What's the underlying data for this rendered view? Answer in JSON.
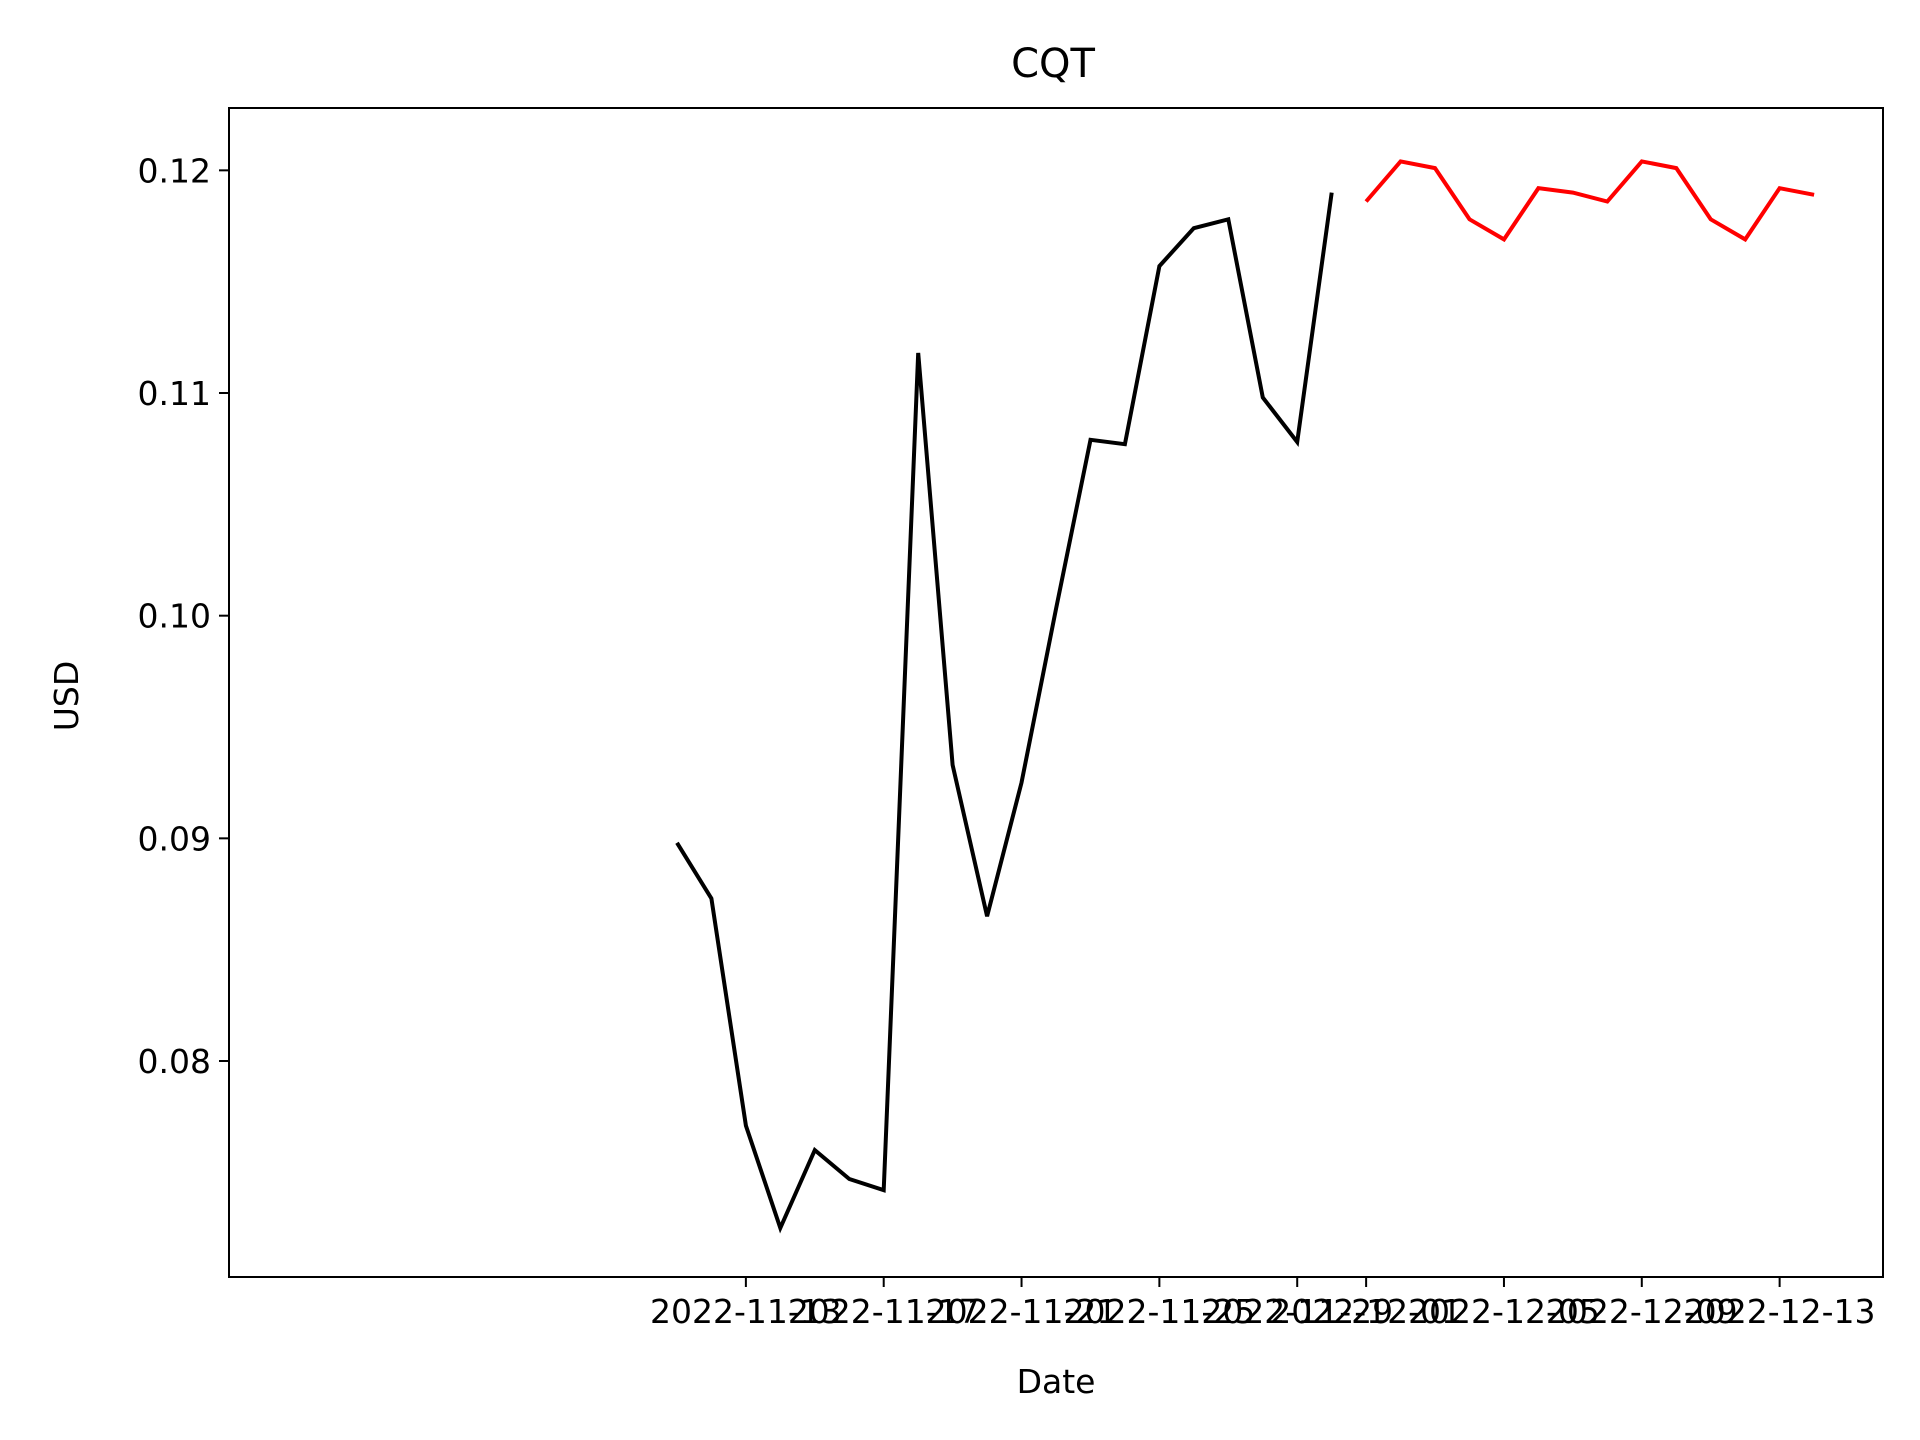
{
  "chart_data": {
    "type": "line",
    "title": "CQT",
    "xlabel": "Date",
    "ylabel": "USD",
    "grid": false,
    "legend": "none",
    "xlim": [
      "2022-10-29",
      "2022-12-16"
    ],
    "ylim": [
      0.0703,
      0.1228
    ],
    "x_ticks": [
      "2022-11-13",
      "2022-11-17",
      "2022-11-21",
      "2022-11-25",
      "2022-11-29",
      "2022-12-01",
      "2022-12-05",
      "2022-12-09",
      "2022-12-13"
    ],
    "y_ticks": [
      0.08,
      0.09,
      0.1,
      0.11,
      0.12
    ],
    "y_tick_labels": [
      "0.08",
      "0.09",
      "0.10",
      "0.11",
      "0.12"
    ],
    "series": [
      {
        "color": "#000000",
        "x": [
          "2022-11-11",
          "2022-11-12",
          "2022-11-13",
          "2022-11-14",
          "2022-11-15",
          "2022-11-16",
          "2022-11-17",
          "2022-11-18",
          "2022-11-19",
          "2022-11-20",
          "2022-11-21",
          "2022-11-22",
          "2022-11-23",
          "2022-11-24",
          "2022-11-25",
          "2022-11-26",
          "2022-11-27",
          "2022-11-28",
          "2022-11-29",
          "2022-11-30"
        ],
        "y": [
          0.0898,
          0.0873,
          0.0771,
          0.0725,
          0.076,
          0.0747,
          0.0742,
          0.1118,
          0.0933,
          0.0865,
          0.0925,
          0.1003,
          0.1079,
          0.1077,
          0.1157,
          0.1174,
          0.1178,
          0.1098,
          0.1078,
          0.119
        ]
      },
      {
        "color": "#ff0000",
        "x": [
          "2022-12-01",
          "2022-12-02",
          "2022-12-03",
          "2022-12-04",
          "2022-12-05",
          "2022-12-06",
          "2022-12-07",
          "2022-12-08",
          "2022-12-09",
          "2022-12-10",
          "2022-12-11",
          "2022-12-12",
          "2022-12-13",
          "2022-12-14"
        ],
        "y": [
          0.1186,
          0.1204,
          0.1201,
          0.1178,
          0.1169,
          0.1192,
          0.119,
          0.1186,
          0.1204,
          0.1201,
          0.1178,
          0.1169,
          0.1192,
          0.1189
        ]
      }
    ]
  }
}
